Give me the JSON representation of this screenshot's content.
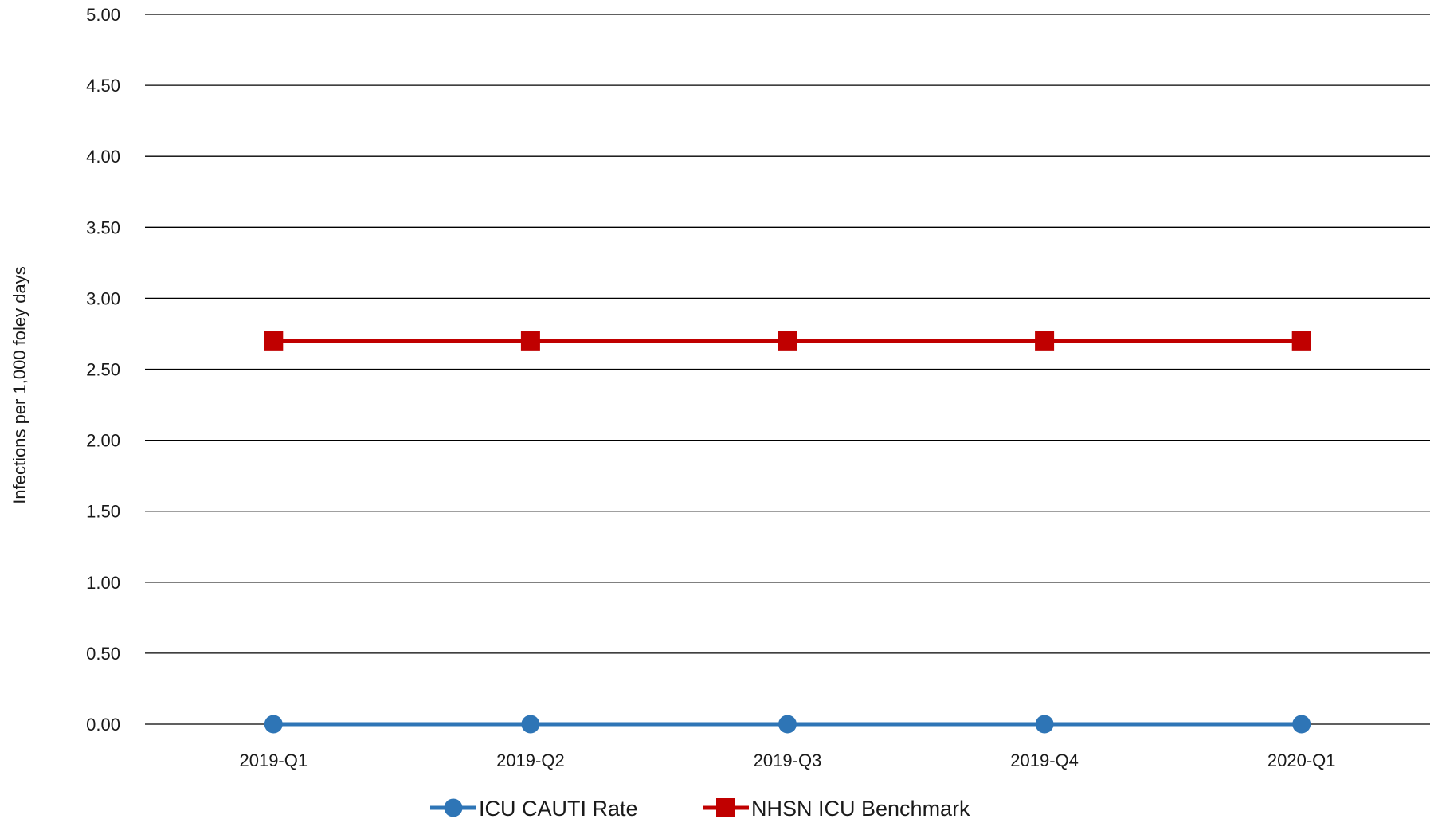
{
  "chart_data": {
    "type": "line",
    "title": "",
    "xlabel": "",
    "ylabel": "Infections per 1,000 foley days",
    "categories": [
      "2019-Q1",
      "2019-Q2",
      "2019-Q3",
      "2019-Q4",
      "2020-Q1"
    ],
    "ylim": [
      0,
      5
    ],
    "yticks": [
      "0.00",
      "0.50",
      "1.00",
      "1.50",
      "2.00",
      "2.50",
      "3.00",
      "3.50",
      "4.00",
      "4.50",
      "5.00"
    ],
    "grid": true,
    "legend_position": "bottom",
    "series": [
      {
        "name": "ICU CAUTI Rate",
        "values": [
          0,
          0,
          0,
          0,
          0
        ],
        "color": "#2e75b6",
        "marker": "circle"
      },
      {
        "name": "NHSN ICU Benchmark",
        "values": [
          2.7,
          2.7,
          2.7,
          2.7,
          2.7
        ],
        "color": "#c00000",
        "marker": "square"
      }
    ]
  }
}
